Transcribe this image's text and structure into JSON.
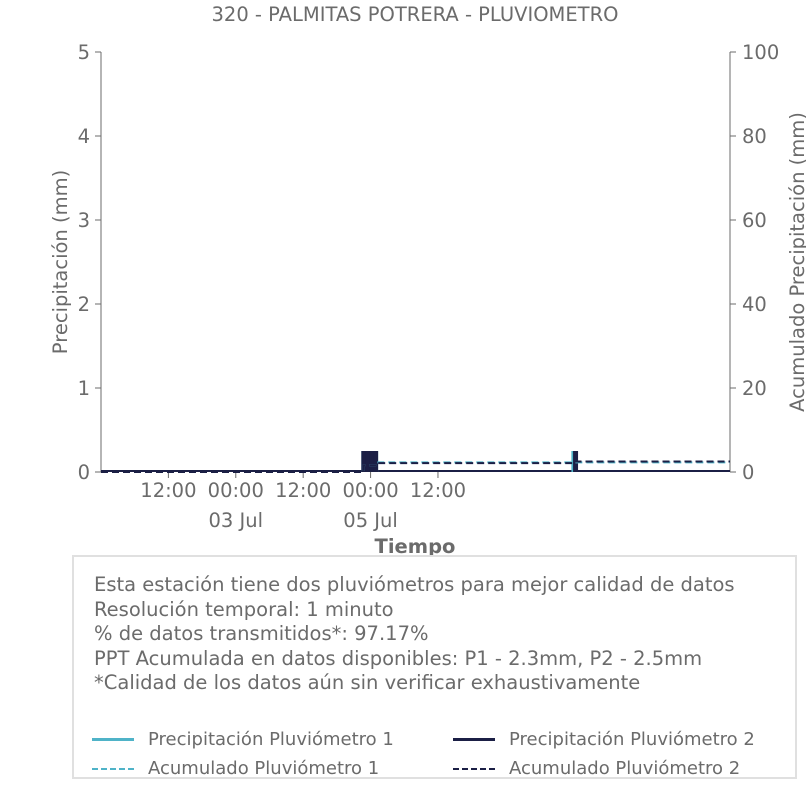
{
  "chart_data": {
    "type": "bar",
    "title": "320 - PALMITAS POTRERA - PLUVIOMETRO",
    "xlabel": "Tiempo",
    "ylabel_left": "Precipitación (mm)",
    "ylabel_right": "Acumulado Precipitación (mm)",
    "ylim_left": [
      0,
      5
    ],
    "ylim_right": [
      0,
      100
    ],
    "yticks_left": [
      "0",
      "1",
      "2",
      "3",
      "4",
      "5"
    ],
    "yticks_right": [
      "0",
      "20",
      "40",
      "60",
      "80",
      "100"
    ],
    "xlim_hours": [
      -13,
      99
    ],
    "x_ticks": [
      {
        "hour": -1,
        "label": "12:00",
        "sub": ""
      },
      {
        "hour": 11,
        "label": "00:00",
        "sub": "03 Jul"
      },
      {
        "hour": 23,
        "label": "12:00",
        "sub": ""
      },
      {
        "hour": 35,
        "label": "00:00",
        "sub": "05 Jul"
      },
      {
        "hour": 47,
        "label": "12:00",
        "sub": ""
      }
    ],
    "grid": false,
    "series": [
      {
        "name": "Precipitación Pluviómetro 1",
        "kind": "bar",
        "color": "#4fb3c8",
        "x_hours": [
          33.8,
          34.5,
          35.3,
          35.9,
          71.2
        ],
        "values": [
          0.25,
          0.25,
          0.25,
          0.25,
          0.25
        ]
      },
      {
        "name": "Precipitación Pluviómetro 2",
        "kind": "bar",
        "color": "#1b1f45",
        "x_hours": [
          33.8,
          34.5,
          35.3,
          35.9,
          71.5
        ],
        "values": [
          0.25,
          0.25,
          0.25,
          0.25,
          0.25
        ]
      },
      {
        "name": "Acumulado Pluviómetro 1",
        "kind": "line",
        "dash": true,
        "color": "#4fb3c8",
        "x_hours": [
          -13,
          33.8,
          33.8,
          36.2,
          36.2,
          71.2,
          71.2,
          99
        ],
        "values": [
          0,
          0,
          1.6,
          1.6,
          2.3,
          2.3,
          2.3,
          2.3
        ]
      },
      {
        "name": "Acumulado Pluviómetro 2",
        "kind": "line",
        "dash": true,
        "color": "#1b1f45",
        "x_hours": [
          -13,
          33.8,
          33.8,
          36.2,
          36.2,
          71.5,
          71.5,
          99
        ],
        "values": [
          0,
          0,
          1.6,
          1.6,
          2.1,
          2.1,
          2.5,
          2.5
        ]
      }
    ]
  },
  "info": {
    "lines": [
      "Esta estación tiene dos pluviómetros para mejor calidad de datos",
      "Resolución temporal: 1 minuto",
      "% de datos transmitidos*: 97.17%",
      "PPT Acumulada en datos disponibles: P1 - 2.3mm, P2 - 2.5mm",
      "*Calidad de los datos aún sin verificar exhaustivamente"
    ]
  },
  "legend": [
    {
      "label": "Precipitación Pluviómetro 1",
      "color": "#4fb3c8",
      "style": "solid"
    },
    {
      "label": "Precipitación Pluviómetro 2",
      "color": "#1b1f45",
      "style": "solid"
    },
    {
      "label": "Acumulado Pluviómetro 1",
      "color": "#4fb3c8",
      "style": "dashed"
    },
    {
      "label": "Acumulado Pluviómetro 2",
      "color": "#1b1f45",
      "style": "dashed"
    }
  ]
}
